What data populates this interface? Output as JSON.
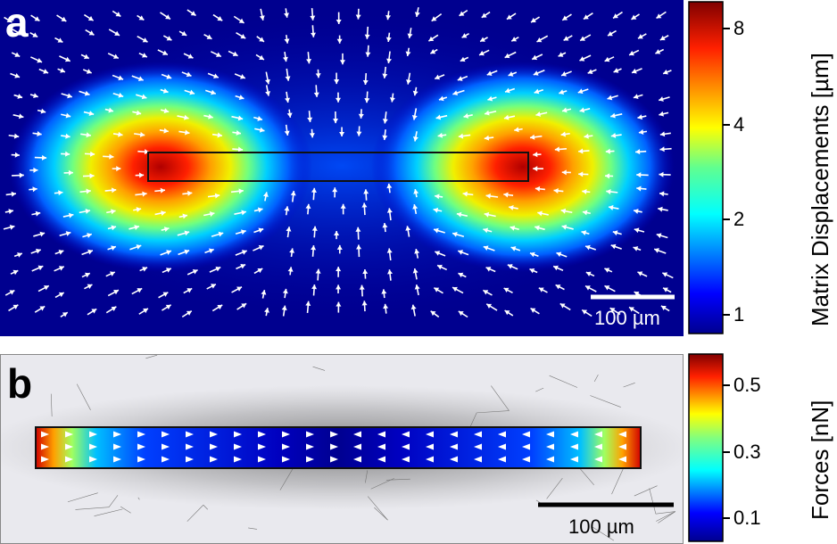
{
  "panel_a": {
    "label": "a",
    "scale_bar_label": "100 µm",
    "colorbar": {
      "title": "Matrix Displacements [µm]",
      "ticks": [
        "8",
        "4",
        "2",
        "1"
      ],
      "scale": "log",
      "colormap": "jet"
    }
  },
  "panel_b": {
    "label": "b",
    "scale_bar_label": "100 µm",
    "colorbar": {
      "title": "Forces [nN]",
      "ticks": [
        "0.5",
        "0.3",
        "0.1"
      ],
      "colormap": "jet"
    }
  },
  "colors": {
    "background_dark": "#00008f",
    "mesh_background": "#e9e9ee",
    "arrow": "#ffffff"
  }
}
